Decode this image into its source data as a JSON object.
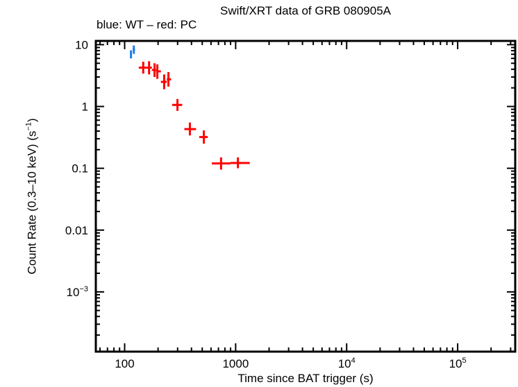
{
  "chart_data": {
    "type": "scatter",
    "title": "Swift/XRT data of GRB 080905A",
    "subtitle": "blue: WT – red: PC",
    "xlabel": "Time since BAT trigger (s)",
    "ylabel": "Count Rate (0.3–10 keV) (s⁻¹)",
    "xscale": "log",
    "yscale": "log",
    "xlim": [
      55,
      330000
    ],
    "ylim": [
      0.000108,
      11.5
    ],
    "grid": false,
    "legend_position": "subtitle",
    "x_ticks": [
      {
        "value": 100,
        "label": "100"
      },
      {
        "value": 1000,
        "label": "1000"
      },
      {
        "value": 10000,
        "label": "10^4"
      },
      {
        "value": 100000,
        "label": "10^5"
      }
    ],
    "y_ticks": [
      {
        "value": 10,
        "label": "10"
      },
      {
        "value": 1,
        "label": "1"
      },
      {
        "value": 0.1,
        "label": "0.1"
      },
      {
        "value": 0.01,
        "label": "0.01"
      },
      {
        "value": 0.001,
        "label": "10^-3"
      }
    ],
    "series": [
      {
        "name": "WT",
        "color": "#1a7fe8",
        "points": [
          {
            "x": 114,
            "y": 7.0,
            "xerr": [
              112,
              116
            ],
            "yerr": [
              6.0,
              8.1
            ]
          },
          {
            "x": 121,
            "y": 8.3,
            "xerr": [
              118,
              124
            ],
            "yerr": [
              7.1,
              9.7
            ]
          }
        ]
      },
      {
        "name": "PC",
        "color": "#ff0000",
        "points": [
          {
            "x": 147,
            "y": 4.25,
            "xerr": [
              134,
              158
            ],
            "yerr": [
              3.4,
              5.3
            ]
          },
          {
            "x": 166,
            "y": 4.25,
            "xerr": [
              158,
              176
            ],
            "yerr": [
              3.3,
              5.4
            ]
          },
          {
            "x": 186,
            "y": 3.9,
            "xerr": [
              176,
              192
            ],
            "yerr": [
              3.0,
              5.0
            ]
          },
          {
            "x": 197,
            "y": 3.7,
            "xerr": [
              192,
              212
            ],
            "yerr": [
              2.8,
              4.8
            ]
          },
          {
            "x": 227,
            "y": 2.5,
            "xerr": [
              212,
              240
            ],
            "yerr": [
              1.9,
              3.3
            ]
          },
          {
            "x": 248,
            "y": 2.75,
            "xerr": [
              240,
              262
            ],
            "yerr": [
              2.1,
              3.6
            ]
          },
          {
            "x": 299,
            "y": 1.06,
            "xerr": [
              268,
              330
            ],
            "yerr": [
              0.85,
              1.32
            ]
          },
          {
            "x": 387,
            "y": 0.43,
            "xerr": [
              345,
              440
            ],
            "yerr": [
              0.34,
              0.55
            ]
          },
          {
            "x": 517,
            "y": 0.32,
            "xerr": [
              470,
              560
            ],
            "yerr": [
              0.25,
              0.41
            ]
          },
          {
            "x": 739,
            "y": 0.12,
            "xerr": [
              610,
              900
            ],
            "yerr": [
              0.095,
              0.15
            ]
          },
          {
            "x": 1048,
            "y": 0.122,
            "xerr": [
              900,
              1340
            ],
            "yerr": [
              0.1,
              0.15
            ]
          }
        ]
      }
    ]
  }
}
